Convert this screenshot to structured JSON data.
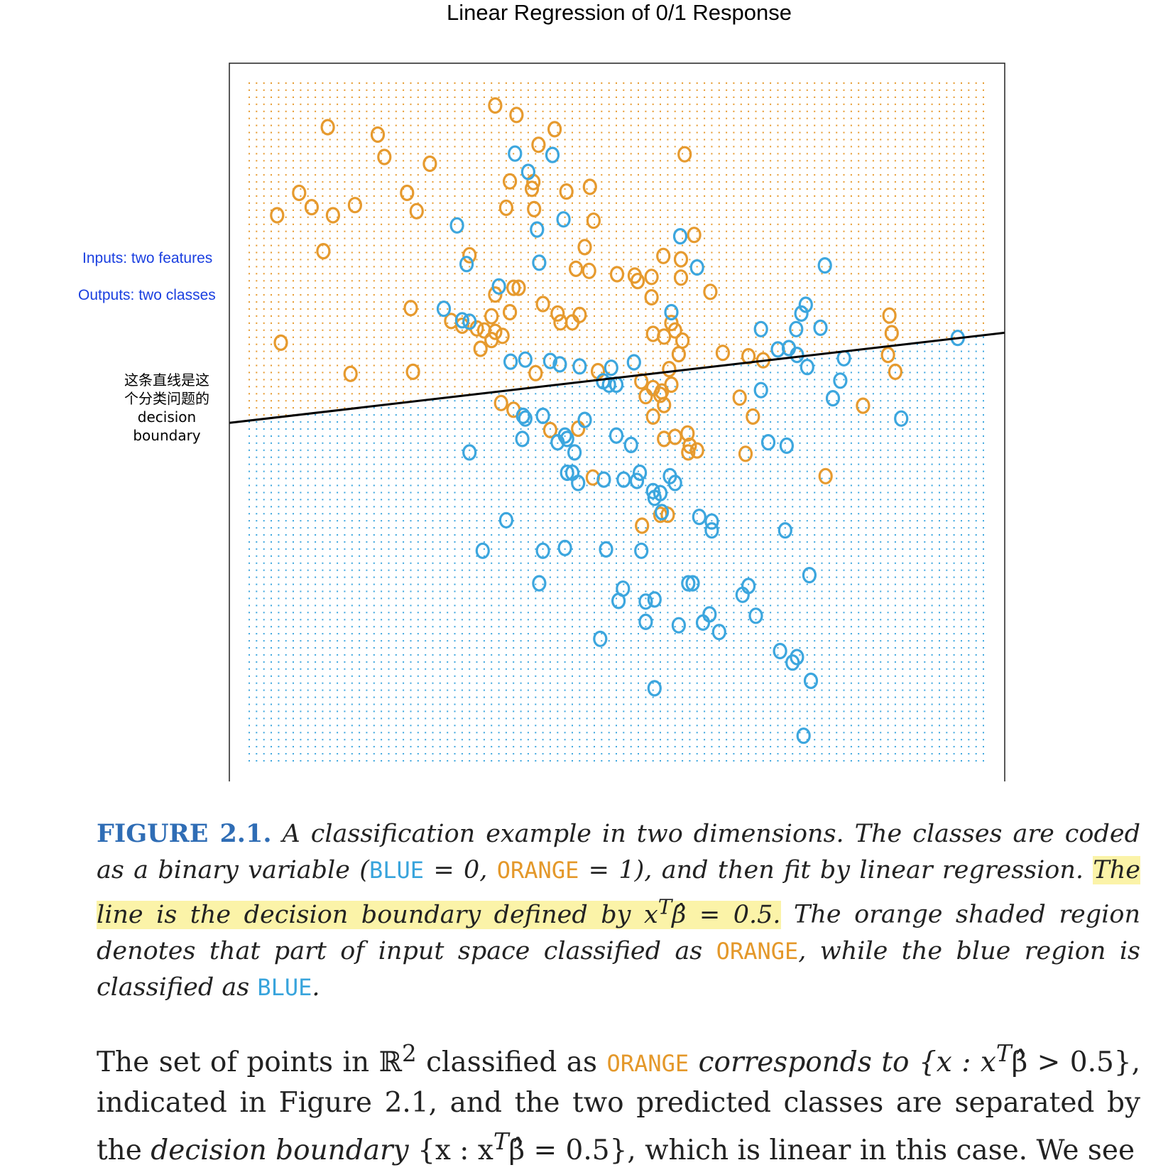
{
  "chart_data": {
    "type": "scatter",
    "title": "Linear Regression of 0/1 Response",
    "xlabel": "",
    "ylabel": "",
    "xlim": [
      0,
      1
    ],
    "ylim": [
      0,
      1
    ],
    "axes_shown": false,
    "grid": false,
    "background_grid": "dotted prediction grid shaded orange above the boundary and blue below",
    "point_marker": "O",
    "colors": {
      "orange": "#e69a2e",
      "blue": "#3ca6de",
      "line": "#000000"
    },
    "decision_boundary": {
      "x": [
        0,
        1
      ],
      "y": [
        0.502,
        0.628
      ]
    },
    "series": [
      {
        "name": "ORANGE",
        "color": "#e69a2e",
        "points": [
          [
            0.335,
            0.967
          ],
          [
            0.364,
            0.953
          ],
          [
            0.416,
            0.932
          ],
          [
            0.107,
            0.935
          ],
          [
            0.175,
            0.924
          ],
          [
            0.184,
            0.891
          ],
          [
            0.246,
            0.881
          ],
          [
            0.394,
            0.909
          ],
          [
            0.355,
            0.855
          ],
          [
            0.387,
            0.854
          ],
          [
            0.35,
            0.816
          ],
          [
            0.432,
            0.84
          ],
          [
            0.385,
            0.844
          ],
          [
            0.464,
            0.847
          ],
          [
            0.388,
            0.814
          ],
          [
            0.469,
            0.797
          ],
          [
            0.593,
            0.895
          ],
          [
            0.606,
            0.776
          ],
          [
            0.215,
            0.838
          ],
          [
            0.228,
            0.811
          ],
          [
            0.068,
            0.838
          ],
          [
            0.085,
            0.817
          ],
          [
            0.114,
            0.805
          ],
          [
            0.144,
            0.82
          ],
          [
            0.038,
            0.805
          ],
          [
            0.101,
            0.752
          ],
          [
            0.3,
            0.746
          ],
          [
            0.457,
            0.758
          ],
          [
            0.445,
            0.726
          ],
          [
            0.463,
            0.723
          ],
          [
            0.501,
            0.718
          ],
          [
            0.525,
            0.716
          ],
          [
            0.548,
            0.714
          ],
          [
            0.529,
            0.708
          ],
          [
            0.548,
            0.684
          ],
          [
            0.588,
            0.713
          ],
          [
            0.588,
            0.74
          ],
          [
            0.564,
            0.745
          ],
          [
            0.628,
            0.692
          ],
          [
            0.36,
            0.698
          ],
          [
            0.367,
            0.698
          ],
          [
            0.335,
            0.688
          ],
          [
            0.4,
            0.674
          ],
          [
            0.42,
            0.66
          ],
          [
            0.45,
            0.658
          ],
          [
            0.424,
            0.647
          ],
          [
            0.44,
            0.647
          ],
          [
            0.22,
            0.668
          ],
          [
            0.33,
            0.656
          ],
          [
            0.355,
            0.662
          ],
          [
            0.275,
            0.649
          ],
          [
            0.29,
            0.642
          ],
          [
            0.31,
            0.638
          ],
          [
            0.32,
            0.635
          ],
          [
            0.335,
            0.633
          ],
          [
            0.33,
            0.621
          ],
          [
            0.345,
            0.627
          ],
          [
            0.315,
            0.608
          ],
          [
            0.55,
            0.63
          ],
          [
            0.565,
            0.626
          ],
          [
            0.575,
            0.646
          ],
          [
            0.58,
            0.635
          ],
          [
            0.59,
            0.62
          ],
          [
            0.645,
            0.602
          ],
          [
            0.68,
            0.597
          ],
          [
            0.7,
            0.591
          ],
          [
            0.88,
            0.574
          ],
          [
            0.87,
            0.599
          ],
          [
            0.875,
            0.631
          ],
          [
            0.872,
            0.657
          ],
          [
            0.043,
            0.617
          ],
          [
            0.138,
            0.571
          ],
          [
            0.223,
            0.574
          ],
          [
            0.39,
            0.572
          ],
          [
            0.475,
            0.575
          ],
          [
            0.534,
            0.56
          ],
          [
            0.54,
            0.538
          ],
          [
            0.55,
            0.55
          ],
          [
            0.562,
            0.545
          ],
          [
            0.575,
            0.555
          ],
          [
            0.56,
            0.54
          ],
          [
            0.565,
            0.525
          ],
          [
            0.572,
            0.578
          ],
          [
            0.585,
            0.6
          ],
          [
            0.668,
            0.536
          ],
          [
            0.686,
            0.508
          ],
          [
            0.343,
            0.528
          ],
          [
            0.36,
            0.518
          ],
          [
            0.448,
            0.49
          ],
          [
            0.41,
            0.488
          ],
          [
            0.55,
            0.508
          ],
          [
            0.565,
            0.475
          ],
          [
            0.58,
            0.478
          ],
          [
            0.597,
            0.483
          ],
          [
            0.6,
            0.465
          ],
          [
            0.598,
            0.455
          ],
          [
            0.61,
            0.458
          ],
          [
            0.676,
            0.453
          ],
          [
            0.836,
            0.524
          ],
          [
            0.785,
            0.42
          ],
          [
            0.468,
            0.418
          ],
          [
            0.535,
            0.347
          ],
          [
            0.56,
            0.363
          ],
          [
            0.57,
            0.363
          ]
        ]
      },
      {
        "name": "BLUE",
        "color": "#3ca6de",
        "points": [
          [
            0.362,
            0.896
          ],
          [
            0.413,
            0.894
          ],
          [
            0.38,
            0.869
          ],
          [
            0.428,
            0.799
          ],
          [
            0.392,
            0.784
          ],
          [
            0.587,
            0.774
          ],
          [
            0.61,
            0.728
          ],
          [
            0.395,
            0.735
          ],
          [
            0.283,
            0.79
          ],
          [
            0.296,
            0.733
          ],
          [
            0.34,
            0.7
          ],
          [
            0.265,
            0.667
          ],
          [
            0.29,
            0.65
          ],
          [
            0.3,
            0.648
          ],
          [
            0.575,
            0.662
          ],
          [
            0.697,
            0.637
          ],
          [
            0.745,
            0.637
          ],
          [
            0.752,
            0.66
          ],
          [
            0.758,
            0.673
          ],
          [
            0.778,
            0.639
          ],
          [
            0.784,
            0.731
          ],
          [
            0.965,
            0.624
          ],
          [
            0.72,
            0.607
          ],
          [
            0.735,
            0.609
          ],
          [
            0.746,
            0.599
          ],
          [
            0.76,
            0.581
          ],
          [
            0.81,
            0.594
          ],
          [
            0.805,
            0.561
          ],
          [
            0.795,
            0.535
          ],
          [
            0.356,
            0.589
          ],
          [
            0.376,
            0.592
          ],
          [
            0.41,
            0.59
          ],
          [
            0.423,
            0.585
          ],
          [
            0.45,
            0.582
          ],
          [
            0.493,
            0.58
          ],
          [
            0.482,
            0.56
          ],
          [
            0.49,
            0.555
          ],
          [
            0.5,
            0.555
          ],
          [
            0.524,
            0.588
          ],
          [
            0.697,
            0.547
          ],
          [
            0.373,
            0.509
          ],
          [
            0.376,
            0.505
          ],
          [
            0.4,
            0.509
          ],
          [
            0.457,
            0.503
          ],
          [
            0.888,
            0.505
          ],
          [
            0.43,
            0.48
          ],
          [
            0.433,
            0.475
          ],
          [
            0.42,
            0.47
          ],
          [
            0.5,
            0.48
          ],
          [
            0.52,
            0.466
          ],
          [
            0.707,
            0.47
          ],
          [
            0.732,
            0.465
          ],
          [
            0.372,
            0.475
          ],
          [
            0.3,
            0.455
          ],
          [
            0.443,
            0.455
          ],
          [
            0.433,
            0.425
          ],
          [
            0.44,
            0.425
          ],
          [
            0.448,
            0.41
          ],
          [
            0.528,
            0.413
          ],
          [
            0.483,
            0.415
          ],
          [
            0.51,
            0.415
          ],
          [
            0.532,
            0.425
          ],
          [
            0.573,
            0.42
          ],
          [
            0.58,
            0.41
          ],
          [
            0.55,
            0.398
          ],
          [
            0.552,
            0.388
          ],
          [
            0.56,
            0.395
          ],
          [
            0.562,
            0.367
          ],
          [
            0.35,
            0.355
          ],
          [
            0.613,
            0.36
          ],
          [
            0.63,
            0.353
          ],
          [
            0.63,
            0.34
          ],
          [
            0.73,
            0.34
          ],
          [
            0.318,
            0.31
          ],
          [
            0.43,
            0.314
          ],
          [
            0.4,
            0.31
          ],
          [
            0.486,
            0.312
          ],
          [
            0.534,
            0.31
          ],
          [
            0.763,
            0.274
          ],
          [
            0.395,
            0.262
          ],
          [
            0.598,
            0.262
          ],
          [
            0.604,
            0.262
          ],
          [
            0.509,
            0.254
          ],
          [
            0.68,
            0.258
          ],
          [
            0.672,
            0.245
          ],
          [
            0.503,
            0.236
          ],
          [
            0.54,
            0.235
          ],
          [
            0.552,
            0.238
          ],
          [
            0.54,
            0.205
          ],
          [
            0.585,
            0.2
          ],
          [
            0.618,
            0.204
          ],
          [
            0.627,
            0.216
          ],
          [
            0.64,
            0.19
          ],
          [
            0.69,
            0.214
          ],
          [
            0.478,
            0.18
          ],
          [
            0.723,
            0.162
          ],
          [
            0.74,
            0.145
          ],
          [
            0.746,
            0.153
          ],
          [
            0.765,
            0.118
          ],
          [
            0.552,
            0.107
          ],
          [
            0.755,
            0.037
          ]
        ]
      }
    ]
  },
  "annotations": {
    "inputs": "Inputs: two features",
    "outputs": "Outputs: two classes",
    "boundary_label": [
      "这条直线是这",
      "个分类问题的",
      "decision",
      "boundary"
    ]
  },
  "caption": {
    "figure_label": "FIGURE 2.1.",
    "text1": " A classification example in two dimensions. The classes are coded as a binary variable (",
    "blue_code": "BLUE",
    "text2": " = 0, ",
    "orange_code": "ORANGE",
    "text3": " = 1), and then fit by linear regression. ",
    "highlighted": "The line is the decision boundary defined by x",
    "highlighted_sup": "T",
    "highlighted_end": "β̂ = 0.5.",
    "text4": " The orange shaded region denotes that part of input space classified as ",
    "orange_word": "ORANGE",
    "text5": ", while the blue region is classified as ",
    "blue_word": "BLUE",
    "text6": "."
  },
  "body": {
    "p1": "The set of points in ℝ",
    "p1_sup": "2",
    "p2": " classified as ",
    "orange_word": "ORANGE",
    "p3": " corresponds to {x : x",
    "p3_sup": "T",
    "p4": "β̂ > 0.5}, indicated in Figure 2.1, and the two predicted classes are separated by the ",
    "p5_it": "decision boundary",
    "p6": " {x : x",
    "p6_sup": "T",
    "p7": "β̂ = 0.5}, which is linear in this case. We see"
  }
}
